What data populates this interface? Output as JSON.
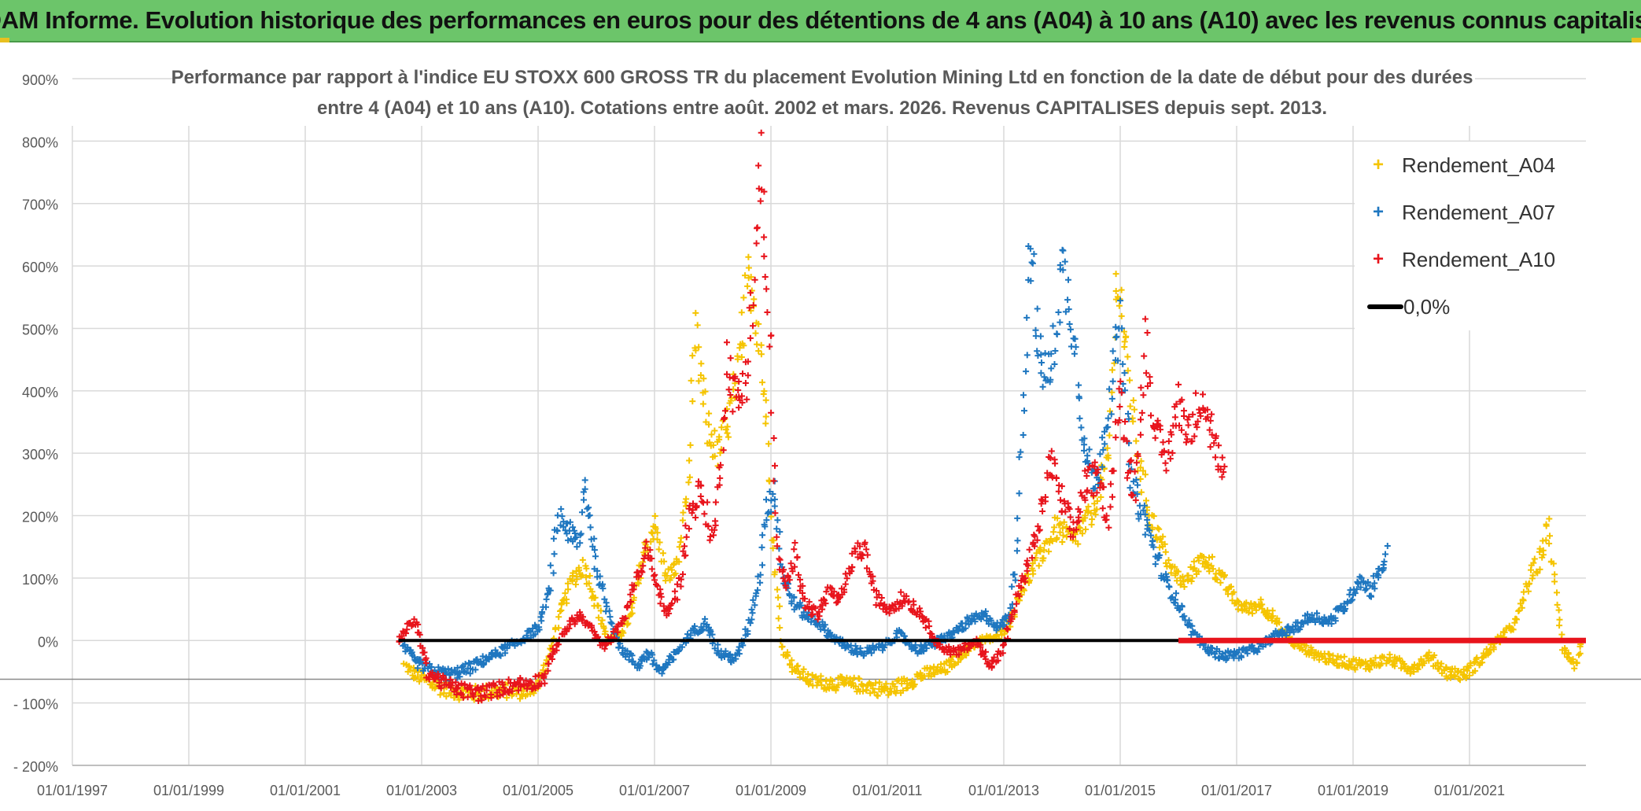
{
  "banner": {
    "title": "ADAM Informe. Evolution historique des performances en euros pour des détentions de 4 ans (A04) à 10 ans (A10) avec les revenus connus capitalisés"
  },
  "chart_data": {
    "type": "scatter",
    "title_line1": "Performance par rapport à l'indice EU STOXX 600 GROSS TR  du placement Evolution Mining Ltd en fonction de la date de début pour des durées",
    "title_line2": "entre 4 (A04) et 10 ans (A10). Cotations entre août. 2002 et mars. 2026. Revenus CAPITALISES depuis sept. 2013.",
    "x_tick_labels": [
      "01/01/1997",
      "01/01/1999",
      "01/01/2001",
      "01/01/2003",
      "01/01/2005",
      "01/01/2007",
      "01/01/2009",
      "01/01/2011",
      "01/01/2013",
      "01/01/2015",
      "01/01/2017",
      "01/01/2019",
      "01/01/2021"
    ],
    "y_tick_labels": [
      "- 200%",
      "- 100%",
      "0%",
      "100%",
      "200%",
      "300%",
      "400%",
      "500%",
      "600%",
      "700%",
      "800%",
      "900%"
    ],
    "xlim": [
      1997.0,
      2023.0
    ],
    "ylim": [
      -200,
      900
    ],
    "x_unit": "year",
    "y_unit": "%",
    "legend_position": "top-right",
    "series": [
      {
        "name": "Rendement_A04",
        "color": "#f5c400",
        "marker": "+",
        "points": [
          [
            2002.7,
            -40
          ],
          [
            2002.9,
            -55
          ],
          [
            2003.1,
            -65
          ],
          [
            2003.3,
            -75
          ],
          [
            2003.6,
            -82
          ],
          [
            2003.9,
            -85
          ],
          [
            2004.2,
            -82
          ],
          [
            2004.5,
            -80
          ],
          [
            2004.8,
            -82
          ],
          [
            2005.0,
            -70
          ],
          [
            2005.2,
            -20
          ],
          [
            2005.4,
            50
          ],
          [
            2005.6,
            100
          ],
          [
            2005.8,
            120
          ],
          [
            2006.0,
            60
          ],
          [
            2006.2,
            0
          ],
          [
            2006.4,
            10
          ],
          [
            2006.6,
            40
          ],
          [
            2006.8,
            130
          ],
          [
            2007.0,
            190
          ],
          [
            2007.2,
            100
          ],
          [
            2007.4,
            120
          ],
          [
            2007.6,
            280
          ],
          [
            2007.7,
            490
          ],
          [
            2007.9,
            340
          ],
          [
            2008.1,
            300
          ],
          [
            2008.3,
            360
          ],
          [
            2008.5,
            460
          ],
          [
            2008.6,
            640
          ],
          [
            2008.75,
            500
          ],
          [
            2008.9,
            420
          ],
          [
            2009.0,
            200
          ],
          [
            2009.1,
            80
          ],
          [
            2009.2,
            -10
          ],
          [
            2009.4,
            -45
          ],
          [
            2009.7,
            -65
          ],
          [
            2010.0,
            -68
          ],
          [
            2010.3,
            -70
          ],
          [
            2010.6,
            -72
          ],
          [
            2011.0,
            -80
          ],
          [
            2011.3,
            -70
          ],
          [
            2011.6,
            -55
          ],
          [
            2012.0,
            -45
          ],
          [
            2012.3,
            -20
          ],
          [
            2012.6,
            0
          ],
          [
            2012.9,
            5
          ],
          [
            2013.1,
            30
          ],
          [
            2013.3,
            80
          ],
          [
            2013.6,
            130
          ],
          [
            2013.9,
            180
          ],
          [
            2014.2,
            160
          ],
          [
            2014.5,
            200
          ],
          [
            2014.8,
            290
          ],
          [
            2014.95,
            600
          ],
          [
            2015.1,
            460
          ],
          [
            2015.3,
            300
          ],
          [
            2015.5,
            200
          ],
          [
            2015.7,
            160
          ],
          [
            2015.9,
            110
          ],
          [
            2016.1,
            90
          ],
          [
            2016.3,
            120
          ],
          [
            2016.5,
            130
          ],
          [
            2016.8,
            90
          ],
          [
            2017.0,
            60
          ],
          [
            2017.2,
            50
          ],
          [
            2017.4,
            60
          ],
          [
            2017.6,
            40
          ],
          [
            2017.8,
            10
          ],
          [
            2018.0,
            -5
          ],
          [
            2018.3,
            -20
          ],
          [
            2018.6,
            -30
          ],
          [
            2018.9,
            -35
          ],
          [
            2019.2,
            -40
          ],
          [
            2019.6,
            -30
          ],
          [
            2020.0,
            -45
          ],
          [
            2020.3,
            -25
          ],
          [
            2020.6,
            -50
          ],
          [
            2020.9,
            -55
          ],
          [
            2021.2,
            -30
          ],
          [
            2021.5,
            0
          ],
          [
            2021.8,
            30
          ],
          [
            2022.0,
            90
          ],
          [
            2022.2,
            130
          ],
          [
            2022.35,
            180
          ],
          [
            2022.45,
            100
          ],
          [
            2022.6,
            -10
          ],
          [
            2022.8,
            -40
          ],
          [
            2022.95,
            -5
          ]
        ]
      },
      {
        "name": "Rendement_A07",
        "color": "#1f77c0",
        "marker": "+",
        "points": [
          [
            2002.7,
            -10
          ],
          [
            2002.9,
            -35
          ],
          [
            2003.2,
            -50
          ],
          [
            2003.5,
            -55
          ],
          [
            2003.8,
            -45
          ],
          [
            2004.1,
            -30
          ],
          [
            2004.4,
            -15
          ],
          [
            2004.7,
            0
          ],
          [
            2005.0,
            20
          ],
          [
            2005.2,
            80
          ],
          [
            2005.35,
            200
          ],
          [
            2005.5,
            180
          ],
          [
            2005.7,
            150
          ],
          [
            2005.8,
            250
          ],
          [
            2006.0,
            120
          ],
          [
            2006.2,
            50
          ],
          [
            2006.4,
            -10
          ],
          [
            2006.7,
            -40
          ],
          [
            2006.9,
            -20
          ],
          [
            2007.1,
            -50
          ],
          [
            2007.3,
            -30
          ],
          [
            2007.6,
            10
          ],
          [
            2007.9,
            30
          ],
          [
            2008.1,
            -20
          ],
          [
            2008.4,
            -30
          ],
          [
            2008.6,
            20
          ],
          [
            2008.8,
            100
          ],
          [
            2008.9,
            200
          ],
          [
            2009.05,
            250
          ],
          [
            2009.2,
            100
          ],
          [
            2009.4,
            60
          ],
          [
            2009.6,
            40
          ],
          [
            2009.8,
            30
          ],
          [
            2010.0,
            10
          ],
          [
            2010.3,
            -10
          ],
          [
            2010.6,
            -20
          ],
          [
            2010.9,
            -10
          ],
          [
            2011.2,
            10
          ],
          [
            2011.5,
            -15
          ],
          [
            2011.8,
            -5
          ],
          [
            2012.1,
            10
          ],
          [
            2012.4,
            30
          ],
          [
            2012.7,
            40
          ],
          [
            2012.9,
            20
          ],
          [
            2013.1,
            40
          ],
          [
            2013.2,
            120
          ],
          [
            2013.3,
            300
          ],
          [
            2013.45,
            650
          ],
          [
            2013.6,
            450
          ],
          [
            2013.8,
            420
          ],
          [
            2014.0,
            600
          ],
          [
            2014.2,
            500
          ],
          [
            2014.4,
            300
          ],
          [
            2014.6,
            250
          ],
          [
            2014.8,
            380
          ],
          [
            2015.0,
            500
          ],
          [
            2015.2,
            250
          ],
          [
            2015.4,
            200
          ],
          [
            2015.6,
            140
          ],
          [
            2015.8,
            90
          ],
          [
            2016.0,
            60
          ],
          [
            2016.2,
            20
          ],
          [
            2016.5,
            -15
          ],
          [
            2016.8,
            -25
          ],
          [
            2017.1,
            -20
          ],
          [
            2017.4,
            -10
          ],
          [
            2017.7,
            10
          ],
          [
            2018.0,
            20
          ],
          [
            2018.3,
            40
          ],
          [
            2018.6,
            30
          ],
          [
            2018.9,
            60
          ],
          [
            2019.1,
            100
          ],
          [
            2019.3,
            80
          ],
          [
            2019.5,
            120
          ],
          [
            2019.6,
            140
          ]
        ]
      },
      {
        "name": "Rendement_A10",
        "color": "#e8141c",
        "marker": "+",
        "points": [
          [
            2002.6,
            0
          ],
          [
            2002.75,
            20
          ],
          [
            2002.9,
            30
          ],
          [
            2003.1,
            -50
          ],
          [
            2003.4,
            -70
          ],
          [
            2003.7,
            -80
          ],
          [
            2004.0,
            -85
          ],
          [
            2004.3,
            -78
          ],
          [
            2004.6,
            -70
          ],
          [
            2004.9,
            -68
          ],
          [
            2005.1,
            -60
          ],
          [
            2005.3,
            -10
          ],
          [
            2005.5,
            20
          ],
          [
            2005.7,
            40
          ],
          [
            2005.9,
            20
          ],
          [
            2006.1,
            -10
          ],
          [
            2006.3,
            10
          ],
          [
            2006.5,
            40
          ],
          [
            2006.7,
            100
          ],
          [
            2006.9,
            150
          ],
          [
            2007.0,
            100
          ],
          [
            2007.2,
            40
          ],
          [
            2007.4,
            80
          ],
          [
            2007.6,
            200
          ],
          [
            2007.8,
            240
          ],
          [
            2008.0,
            160
          ],
          [
            2008.1,
            240
          ],
          [
            2008.25,
            450
          ],
          [
            2008.4,
            380
          ],
          [
            2008.55,
            410
          ],
          [
            2008.7,
            550
          ],
          [
            2008.82,
            780
          ],
          [
            2008.9,
            600
          ],
          [
            2009.0,
            450
          ],
          [
            2009.1,
            150
          ],
          [
            2009.25,
            80
          ],
          [
            2009.4,
            140
          ],
          [
            2009.6,
            60
          ],
          [
            2009.8,
            40
          ],
          [
            2010.0,
            80
          ],
          [
            2010.2,
            60
          ],
          [
            2010.4,
            130
          ],
          [
            2010.6,
            150
          ],
          [
            2010.8,
            70
          ],
          [
            2011.0,
            50
          ],
          [
            2011.3,
            70
          ],
          [
            2011.6,
            40
          ],
          [
            2011.9,
            -10
          ],
          [
            2012.2,
            -20
          ],
          [
            2012.5,
            0
          ],
          [
            2012.8,
            -40
          ],
          [
            2013.0,
            -10
          ],
          [
            2013.2,
            60
          ],
          [
            2013.4,
            120
          ],
          [
            2013.6,
            180
          ],
          [
            2013.8,
            290
          ],
          [
            2014.0,
            220
          ],
          [
            2014.2,
            170
          ],
          [
            2014.4,
            250
          ],
          [
            2014.6,
            260
          ],
          [
            2014.8,
            200
          ],
          [
            2015.0,
            400
          ],
          [
            2015.1,
            300
          ],
          [
            2015.25,
            240
          ],
          [
            2015.45,
            480
          ],
          [
            2015.6,
            330
          ],
          [
            2015.8,
            290
          ],
          [
            2016.0,
            380
          ],
          [
            2016.2,
            330
          ],
          [
            2016.4,
            400
          ],
          [
            2016.6,
            320
          ],
          [
            2016.8,
            250
          ]
        ]
      },
      {
        "name": "0,0%",
        "color": "#000000",
        "marker": "line",
        "points": [
          [
            2002.6,
            0
          ],
          [
            2016.0,
            0
          ]
        ]
      }
    ],
    "extra_lines": [
      {
        "name": "A10 zero plateau",
        "color": "#e8141c",
        "points": [
          [
            2016.0,
            0
          ],
          [
            2023.0,
            0
          ]
        ]
      }
    ]
  }
}
